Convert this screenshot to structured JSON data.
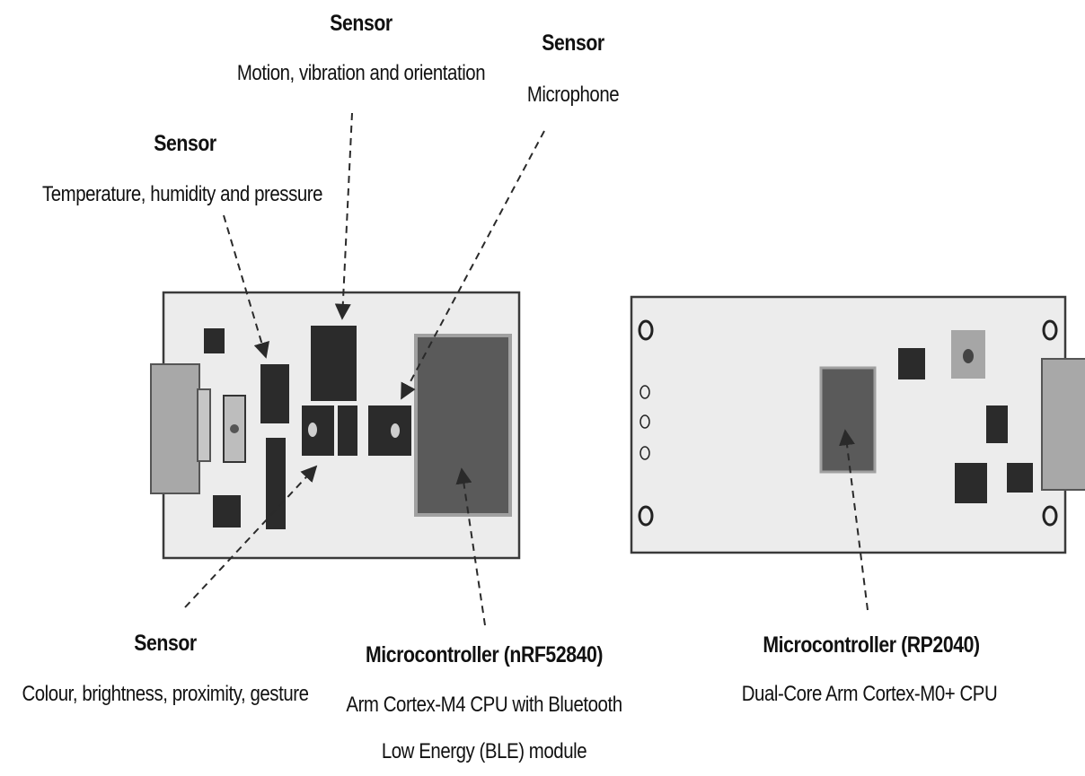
{
  "labels": {
    "sensor_motion": {
      "title": "Sensor",
      "desc": "Motion, vibration and orientation"
    },
    "sensor_microphone": {
      "title": "Sensor",
      "desc": "Microphone"
    },
    "sensor_environment": {
      "title": "Sensor",
      "desc": "Temperature, humidity and pressure"
    },
    "sensor_optical": {
      "title": "Sensor",
      "desc": "Colour, brightness, proximity, gesture"
    },
    "mcu_nrf": {
      "title": "Microcontroller (nRF52840)",
      "desc_line1": "Arm Cortex-M4 CPU with Bluetooth",
      "desc_line2": "Low Energy (BLE) module"
    },
    "mcu_rp": {
      "title": "Microcontroller (RP2040)",
      "desc": "Dual-Core Arm Cortex-M0+ CPU"
    }
  },
  "colors": {
    "board_fill": "#ececec",
    "board_stroke": "#3a3a3a",
    "chip_dark": "#2b2b2b",
    "chip_mcu": "#5a5a5a",
    "usb_gray": "#a8a8a8",
    "arrow": "#2a2a2a"
  }
}
